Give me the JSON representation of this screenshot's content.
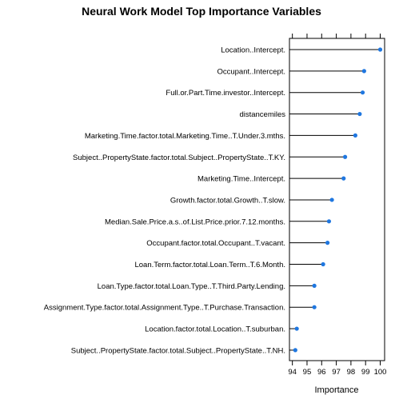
{
  "chart_data": {
    "type": "dot",
    "title": "Neural Work Model Top Importance Variables",
    "xlabel": "Importance",
    "ylabel": "",
    "xlim": [
      93.8,
      100.3
    ],
    "xticks": [
      94,
      95,
      96,
      97,
      98,
      99,
      100
    ],
    "point_color": "#1f77e0",
    "line_color": "#000000",
    "categories": [
      "Location..Intercept.",
      "Occupant..Intercept.",
      "Full.or.Part.Time.investor..Intercept.",
      "distancemiles",
      "Marketing.Time.factor.total.Marketing.Time..T.Under.3.mths.",
      "Subject..PropertyState.factor.total.Subject..PropertyState..T.KY.",
      "Marketing.Time..Intercept.",
      "Growth.factor.total.Growth..T.slow.",
      "Median.Sale.Price.a.s..of.List.Price.prior.7.12.months.",
      "Occupant.factor.total.Occupant..T.vacant.",
      "Loan.Term.factor.total.Loan.Term..T.6.Month.",
      "Loan.Type.factor.total.Loan.Type..T.Third.Party.Lending.",
      "Assignment.Type.factor.total.Assignment.Type..T.Purchase.Transaction.",
      "Location.factor.total.Location..T.suburban.",
      "Subject..PropertyState.factor.total.Subject..PropertyState..T.NH."
    ],
    "values": [
      100.0,
      98.9,
      98.8,
      98.6,
      98.3,
      97.6,
      97.5,
      96.7,
      96.5,
      96.4,
      96.1,
      95.5,
      95.5,
      94.3,
      94.2
    ]
  }
}
